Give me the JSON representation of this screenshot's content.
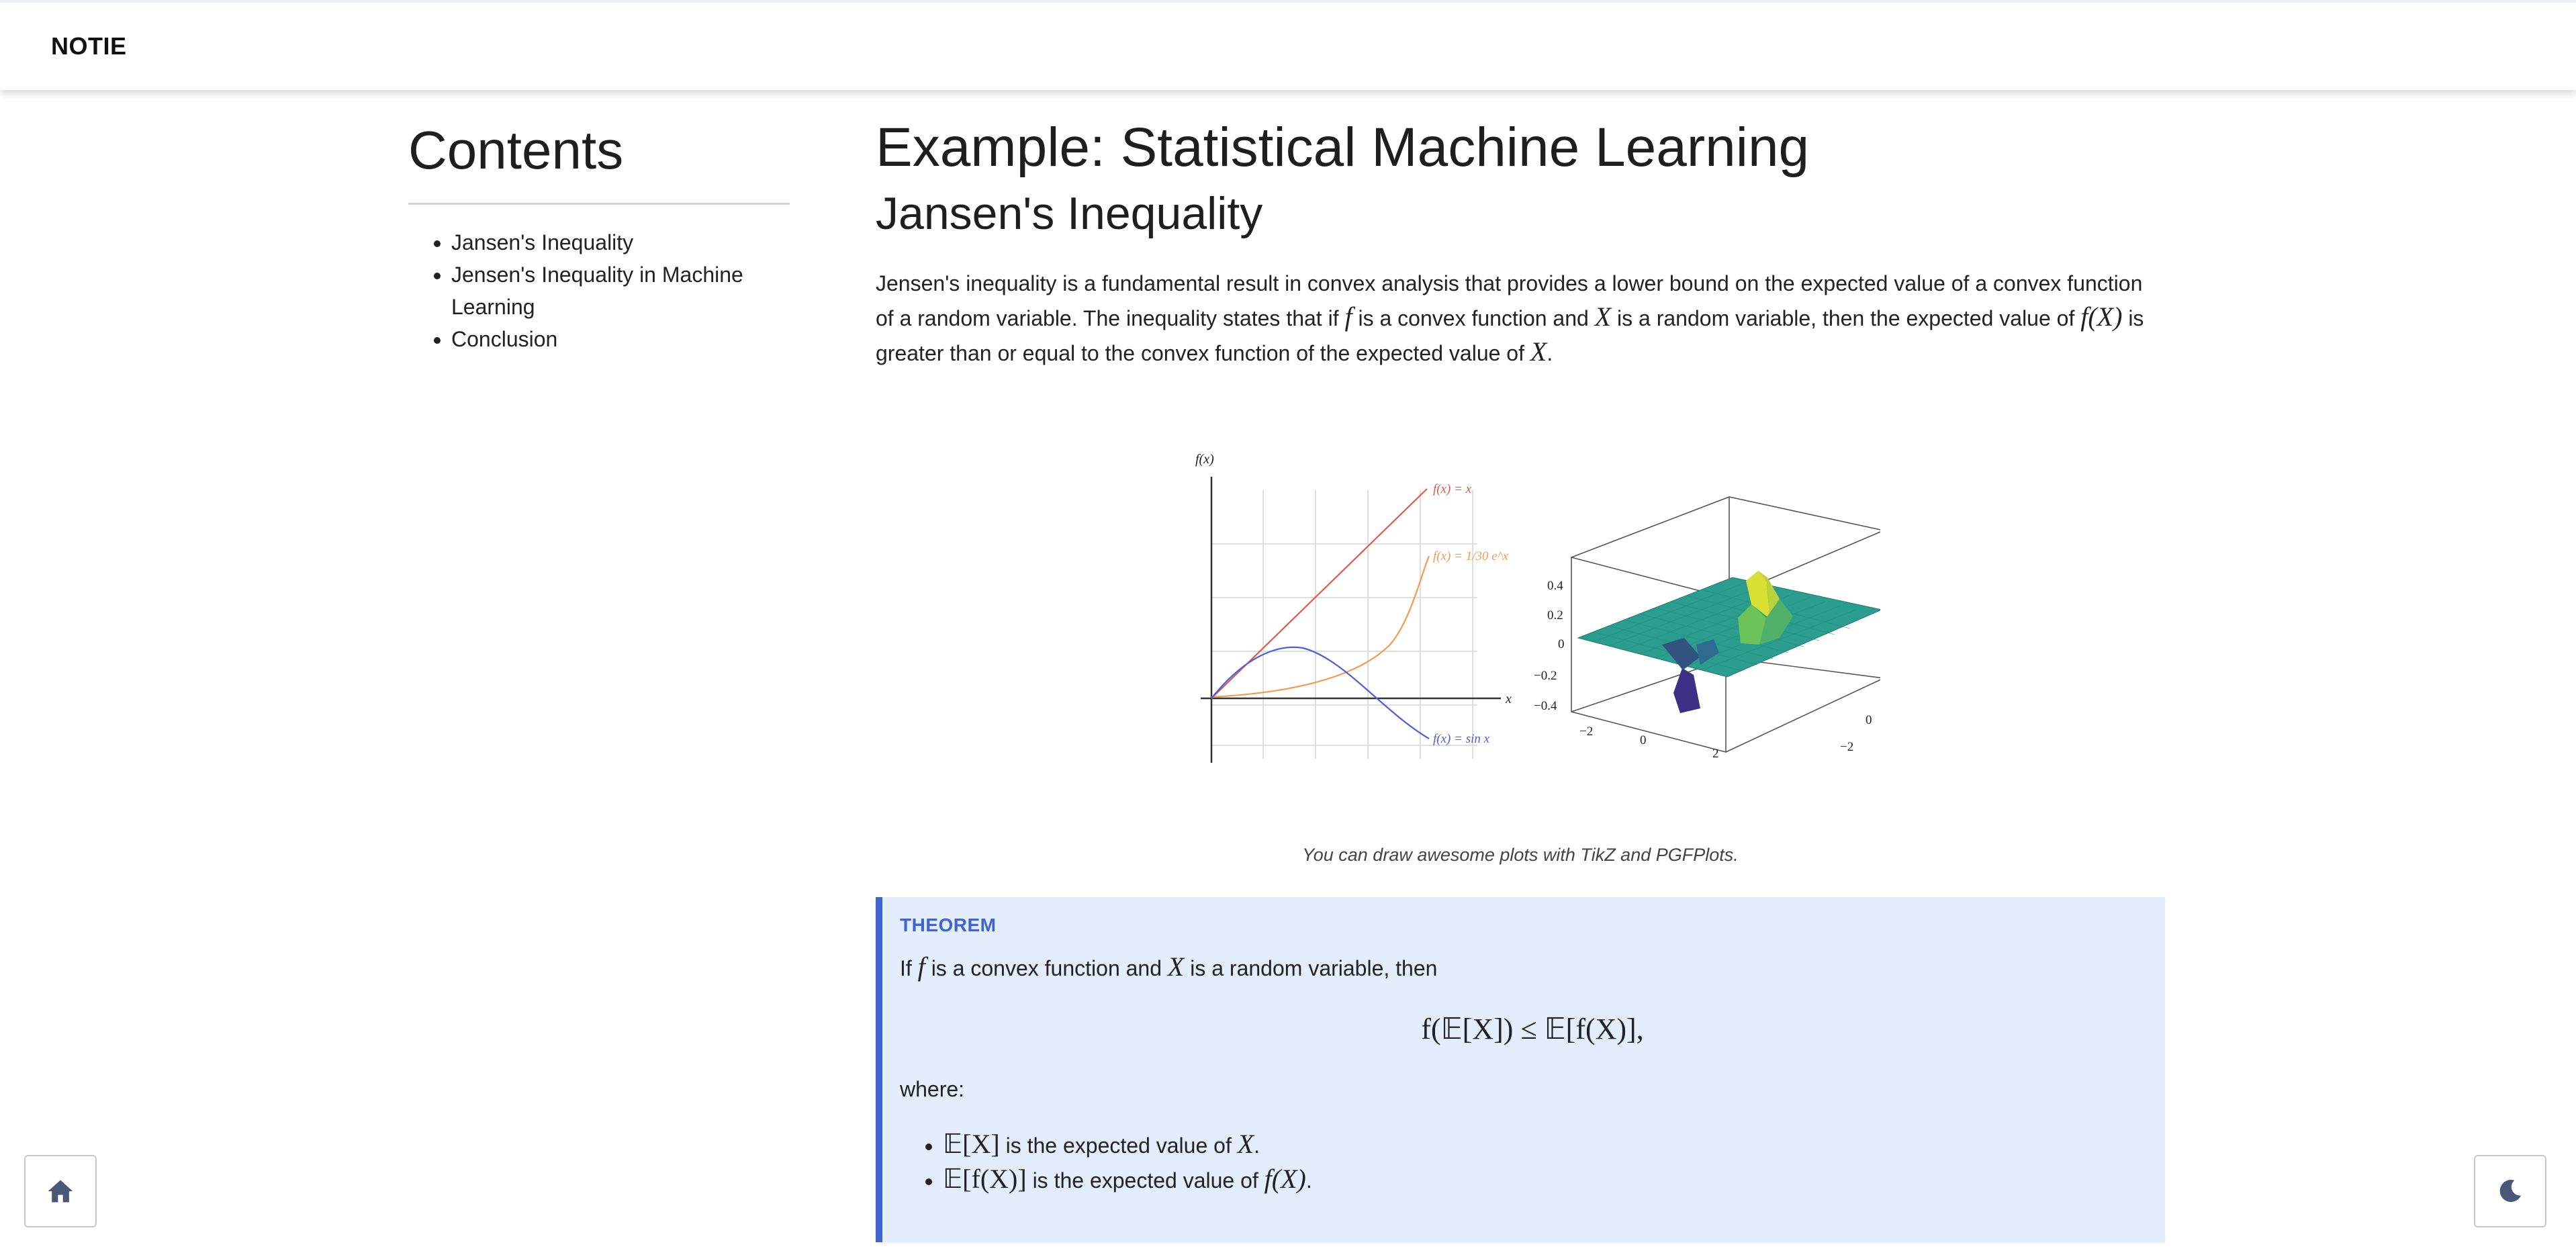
{
  "brand": "NOTIE",
  "toc": {
    "heading": "Contents",
    "items": [
      "Jansen's Inequality",
      "Jensen's Inequality in Machine Learning",
      "Conclusion"
    ]
  },
  "main": {
    "title": "Example: Statistical Machine Learning",
    "subtitle": "Jansen's Inequality",
    "intro": {
      "p1": "Jensen's inequality is a fundamental result in convex analysis that provides a lower bound on the expected value of a convex function of a random variable. The inequality states that if ",
      "p2": " is a convex function and ",
      "p3": " is a random variable, then the expected value of ",
      "p4": " is greater than or equal to the convex function of the expected value of ",
      "p5": ".",
      "m_f": "f",
      "m_X": "X",
      "m_fX": "f(X)"
    },
    "figure": {
      "left_plot": {
        "y_axis_label": "f(x)",
        "x_axis_label": "x",
        "curves": [
          "f(x) = x",
          "f(x) = 1/30 e^x",
          "f(x) = sin x"
        ]
      },
      "right_plot": {
        "z_ticks": [
          "0.4",
          "0.2",
          "0",
          "−0.2",
          "−0.4"
        ],
        "x_ticks": [
          "−2",
          "0",
          "2"
        ],
        "y_ticks": [
          "2",
          "0",
          "−2"
        ]
      }
    },
    "caption": "You can draw awesome plots with TikZ and PGFPlots."
  },
  "theorem": {
    "label": "THEOREM",
    "s1": "If ",
    "s2": " is a convex function and ",
    "s3": " is a random variable, then",
    "m_f": "f",
    "m_X": "X",
    "formula": "f(𝔼[X]) ≤ 𝔼[f(X)],",
    "where": "where:",
    "items": [
      {
        "math": "𝔼[X]",
        "text": " is the expected value of ",
        "math2": "X",
        "end": "."
      },
      {
        "math": "𝔼[f(X)]",
        "text": " is the expected value of ",
        "math2": "f(X)",
        "end": "."
      }
    ]
  },
  "icons": {
    "home": "home-icon",
    "theme": "moon-icon"
  },
  "colors": {
    "accent": "#3f64d1",
    "theorem_bg": "#e3edfc",
    "curve_linear": "#e05a4a",
    "curve_exp": "#f29a50",
    "curve_sin": "#4d5fe0"
  }
}
